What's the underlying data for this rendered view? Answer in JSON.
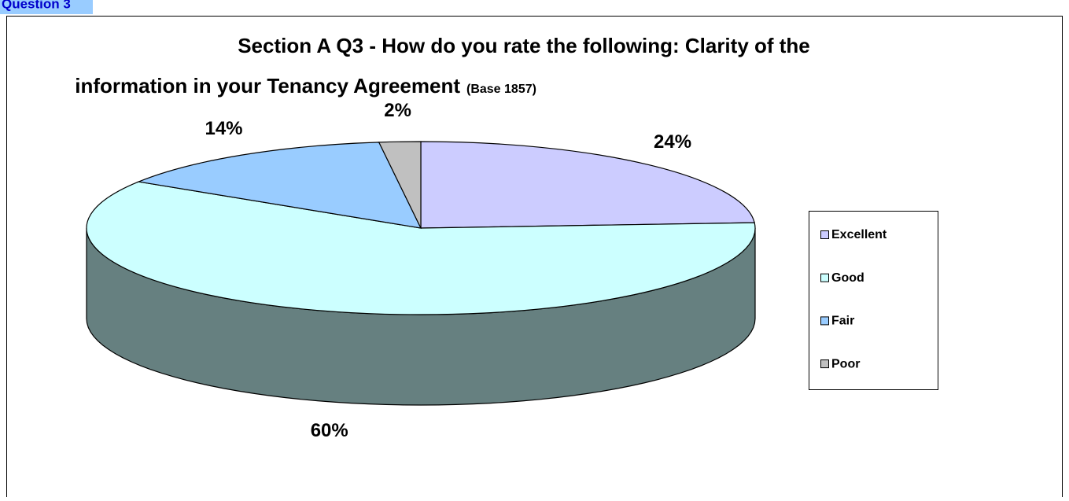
{
  "header": "Question 3",
  "chart_data": {
    "type": "pie3d",
    "title_lines": [
      "Section A Q3 - How do you rate the following: Clarity of the",
      "information in your Tenancy Agreement"
    ],
    "subtitle": "(Base 1857)",
    "categories": [
      "Excellent",
      "Good",
      "Fair",
      "Poor"
    ],
    "values": [
      24,
      60,
      14,
      2
    ],
    "value_labels": [
      "24%",
      "60%",
      "14%",
      "2%"
    ],
    "colors": [
      "#ccccff",
      "#ccffff",
      "#99ccff",
      "#c0c0c0"
    ],
    "legend": "right"
  }
}
